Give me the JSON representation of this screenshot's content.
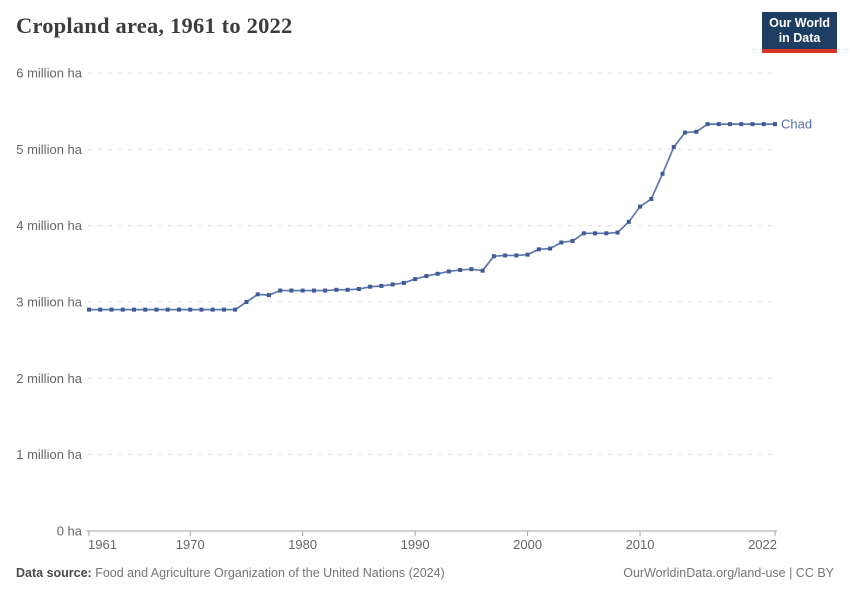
{
  "header": {
    "title": "Cropland area, 1961 to 2022",
    "logo": {
      "line1": "Our World",
      "line2": "in Data"
    }
  },
  "colors": {
    "logo_bg": "#1d3d63",
    "logo_accent": "#d8352a",
    "series_line": "#5b79ae",
    "series_dot": "#3e5b96",
    "series_label": "#5471a8",
    "gridline": "#e0e0e0",
    "axis_line": "#a6a6a6",
    "tick_label": "#666666",
    "title_text": "#3d3d3d"
  },
  "chart_data": {
    "type": "line",
    "title": "Cropland area, 1961 to 2022",
    "unit": "million ha",
    "xlabel": "",
    "ylabel": "",
    "xlim": [
      1961,
      2022
    ],
    "ylim": [
      0,
      6
    ],
    "grid": "horizontal-dashed",
    "legend_position": "inline-end-of-line",
    "x_ticks": [
      1961,
      1970,
      1980,
      1990,
      2000,
      2010,
      2022
    ],
    "y_ticks": [
      {
        "value": 0,
        "label": "0 ha"
      },
      {
        "value": 1,
        "label": "1 million ha"
      },
      {
        "value": 2,
        "label": "2 million ha"
      },
      {
        "value": 3,
        "label": "3 million ha"
      },
      {
        "value": 4,
        "label": "4 million ha"
      },
      {
        "value": 5,
        "label": "5 million ha"
      },
      {
        "value": 6,
        "label": "6 million ha"
      }
    ],
    "series": [
      {
        "name": "Chad",
        "years": [
          1961,
          1962,
          1963,
          1964,
          1965,
          1966,
          1967,
          1968,
          1969,
          1970,
          1971,
          1972,
          1973,
          1974,
          1975,
          1976,
          1977,
          1978,
          1979,
          1980,
          1981,
          1982,
          1983,
          1984,
          1985,
          1986,
          1987,
          1988,
          1989,
          1990,
          1991,
          1992,
          1993,
          1994,
          1995,
          1996,
          1997,
          1998,
          1999,
          2000,
          2001,
          2002,
          2003,
          2004,
          2005,
          2006,
          2007,
          2008,
          2009,
          2010,
          2011,
          2012,
          2013,
          2014,
          2015,
          2016,
          2017,
          2018,
          2019,
          2020,
          2021,
          2022
        ],
        "values_million_ha": [
          2.9,
          2.9,
          2.9,
          2.9,
          2.9,
          2.9,
          2.9,
          2.9,
          2.9,
          2.9,
          2.9,
          2.9,
          2.9,
          2.9,
          3.0,
          3.1,
          3.09,
          3.15,
          3.15,
          3.15,
          3.15,
          3.15,
          3.16,
          3.16,
          3.17,
          3.2,
          3.21,
          3.23,
          3.25,
          3.3,
          3.34,
          3.37,
          3.4,
          3.42,
          3.43,
          3.41,
          3.6,
          3.61,
          3.61,
          3.62,
          3.69,
          3.7,
          3.78,
          3.8,
          3.9,
          3.9,
          3.9,
          3.91,
          4.05,
          4.25,
          4.35,
          4.68,
          5.03,
          5.22,
          5.23,
          5.33,
          5.33,
          5.33,
          5.33,
          5.33,
          5.33,
          5.33
        ]
      }
    ]
  },
  "footer": {
    "source_label": "Data source:",
    "source_text": " Food and Agriculture Organization of the United Nations (2024)",
    "credit": "OurWorldinData.org/land-use | CC BY"
  }
}
